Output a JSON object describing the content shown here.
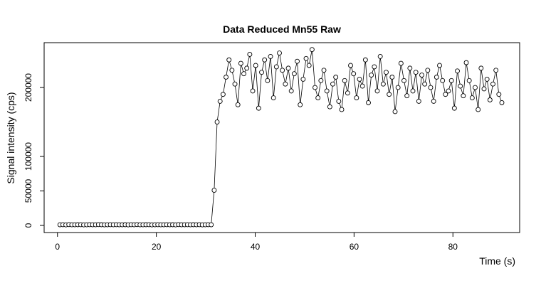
{
  "chart_data": {
    "type": "line",
    "title": "Data Reduced Mn55 Raw",
    "x_label": "Time (s)",
    "y_label": "Signal intensity (cps)",
    "x": [
      0.5,
      1.1,
      1.7,
      2.3,
      2.9,
      3.5,
      4.1,
      4.7,
      5.3,
      5.9,
      6.5,
      7.1,
      7.7,
      8.3,
      8.9,
      9.5,
      10.1,
      10.7,
      11.3,
      11.9,
      12.5,
      13.1,
      13.7,
      14.3,
      14.9,
      15.5,
      16.1,
      16.7,
      17.3,
      17.9,
      18.5,
      19.1,
      19.7,
      20.3,
      20.9,
      21.5,
      22.1,
      22.7,
      23.3,
      23.9,
      24.5,
      25.1,
      25.7,
      26.3,
      26.9,
      27.5,
      28.1,
      28.7,
      29.3,
      29.9,
      30.5,
      31.1,
      31.7,
      32.3,
      32.9,
      33.5,
      34.1,
      34.7,
      35.3,
      35.9,
      36.5,
      37.1,
      37.7,
      38.3,
      38.9,
      39.5,
      40.1,
      40.7,
      41.3,
      41.9,
      42.5,
      43.1,
      43.7,
      44.3,
      44.9,
      45.5,
      46.1,
      46.7,
      47.3,
      47.9,
      48.5,
      49.1,
      49.7,
      50.3,
      50.9,
      51.5,
      52.1,
      52.7,
      53.3,
      53.9,
      54.5,
      55.1,
      55.7,
      56.3,
      56.9,
      57.5,
      58.1,
      58.7,
      59.3,
      59.9,
      60.5,
      61.1,
      61.7,
      62.3,
      62.9,
      63.5,
      64.1,
      64.7,
      65.3,
      65.9,
      66.5,
      67.1,
      67.7,
      68.3,
      68.9,
      69.5,
      70.1,
      70.7,
      71.3,
      71.9,
      72.5,
      73.1,
      73.7,
      74.3,
      74.9,
      75.5,
      76.1,
      76.7,
      77.3,
      77.9,
      78.5,
      79.1,
      79.7,
      80.3,
      80.9,
      81.5,
      82.1,
      82.7,
      83.3,
      83.9,
      84.5,
      85.1,
      85.7,
      86.3,
      86.9,
      87.5,
      88.1,
      88.7,
      89.3,
      89.9
    ],
    "series": [
      {
        "color": "#000000",
        "values": [
          1000,
          1100,
          900,
          1200,
          1000,
          950,
          1050,
          1150,
          900,
          1000,
          1100,
          1000,
          950,
          1200,
          1050,
          900,
          1000,
          1100,
          1000,
          1150,
          950,
          1000,
          1050,
          900,
          1100,
          1000,
          1200,
          950,
          1000,
          1050,
          1100,
          900,
          1000,
          1150,
          1000,
          950,
          1100,
          1000,
          1050,
          900,
          1200,
          1000,
          1000,
          1100,
          950,
          1050,
          1000,
          1150,
          900,
          1000,
          1100,
          1000,
          51000,
          150000,
          180000,
          190000,
          215000,
          240000,
          225000,
          205000,
          175000,
          235000,
          220000,
          228000,
          248000,
          195000,
          232000,
          170000,
          222000,
          240000,
          210000,
          245000,
          185000,
          230000,
          250000,
          225000,
          205000,
          228000,
          195000,
          220000,
          238000,
          175000,
          212000,
          242000,
          232000,
          255000,
          200000,
          185000,
          210000,
          225000,
          195000,
          172000,
          205000,
          215000,
          180000,
          168000,
          210000,
          192000,
          232000,
          220000,
          185000,
          212000,
          202000,
          240000,
          178000,
          218000,
          230000,
          195000,
          245000,
          205000,
          222000,
          190000,
          215000,
          165000,
          200000,
          235000,
          210000,
          188000,
          228000,
          195000,
          222000,
          180000,
          218000,
          205000,
          225000,
          200000,
          180000,
          215000,
          232000,
          210000,
          190000,
          195000,
          210000,
          170000,
          224000,
          202000,
          188000,
          236000,
          210000,
          185000,
          200000,
          168000,
          228000,
          198000,
          212000,
          182000,
          205000,
          225000,
          190000,
          178000
        ]
      }
    ],
    "xlim": [
      -2.7,
      93.5
    ],
    "ylim": [
      -10300,
      265000
    ],
    "xticks": [
      0,
      20,
      40,
      60,
      80
    ],
    "yticks": [
      0,
      50000,
      100000,
      200000
    ]
  }
}
